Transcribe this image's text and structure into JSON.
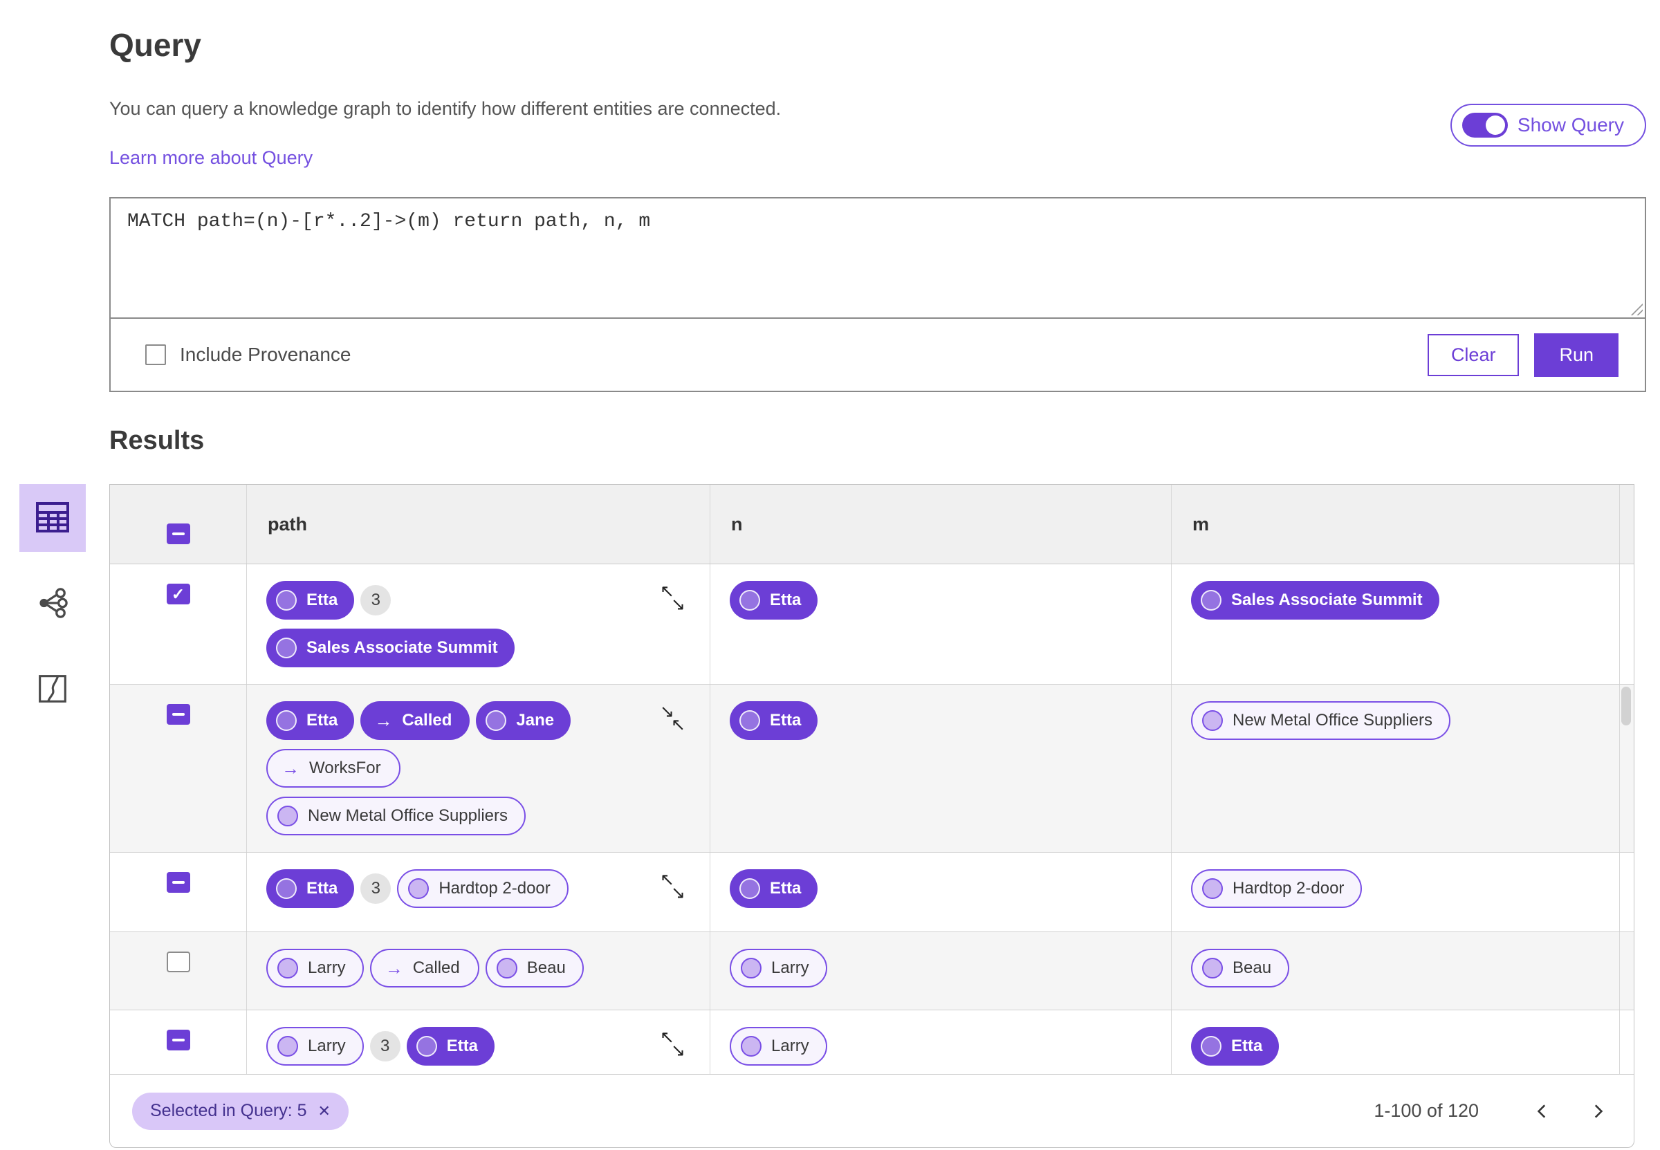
{
  "header": {
    "title": "Query",
    "description": "You can query a knowledge graph to identify how different entities are connected.",
    "learn_more": "Learn more about Query",
    "show_query_label": "Show Query",
    "show_query_on": true
  },
  "query_panel": {
    "query_text": "MATCH path=(n)-[r*..2]->(m) return path, n, m",
    "include_provenance_label": "Include Provenance",
    "include_provenance_checked": false,
    "clear_label": "Clear",
    "run_label": "Run"
  },
  "sidebar": {
    "views": [
      {
        "name": "table",
        "selected": true
      },
      {
        "name": "graph",
        "selected": false
      },
      {
        "name": "map",
        "selected": false
      }
    ]
  },
  "results": {
    "title": "Results",
    "columns": [
      "path",
      "n",
      "m"
    ],
    "rows": [
      {
        "checkbox": "checked",
        "path_lines": [
          [
            {
              "type": "node",
              "variant": "filled",
              "label": "Etta"
            },
            {
              "type": "count",
              "label": "3"
            }
          ],
          [
            {
              "type": "node",
              "variant": "filled",
              "label": "Sales Associate Summit"
            }
          ]
        ],
        "resize_icon": "expand",
        "n": [
          {
            "type": "node",
            "variant": "filled",
            "label": "Etta"
          }
        ],
        "m": [
          {
            "type": "node",
            "variant": "filled",
            "label": "Sales Associate Summit"
          }
        ]
      },
      {
        "checkbox": "indeterminate",
        "path_lines": [
          [
            {
              "type": "node",
              "variant": "filled",
              "label": "Etta"
            },
            {
              "type": "edge",
              "variant": "filled",
              "label": "Called"
            },
            {
              "type": "node",
              "variant": "filled",
              "label": "Jane"
            }
          ],
          [
            {
              "type": "edge",
              "variant": "outlined",
              "label": "WorksFor"
            }
          ],
          [
            {
              "type": "node",
              "variant": "outlined",
              "label": "New Metal Office Suppliers"
            }
          ]
        ],
        "resize_icon": "collapse",
        "n": [
          {
            "type": "node",
            "variant": "filled",
            "label": "Etta"
          }
        ],
        "m": [
          {
            "type": "node",
            "variant": "outlined",
            "label": "New Metal Office Suppliers"
          }
        ]
      },
      {
        "checkbox": "indeterminate",
        "path_lines": [
          [
            {
              "type": "node",
              "variant": "filled",
              "label": "Etta"
            },
            {
              "type": "count",
              "label": "3"
            },
            {
              "type": "node",
              "variant": "outlined",
              "label": "Hardtop 2-door"
            }
          ]
        ],
        "resize_icon": "expand",
        "n": [
          {
            "type": "node",
            "variant": "filled",
            "label": "Etta"
          }
        ],
        "m": [
          {
            "type": "node",
            "variant": "outlined",
            "label": "Hardtop 2-door"
          }
        ]
      },
      {
        "checkbox": "unchecked",
        "path_lines": [
          [
            {
              "type": "node",
              "variant": "outlined",
              "label": "Larry"
            },
            {
              "type": "edge",
              "variant": "outlined",
              "label": "Called"
            },
            {
              "type": "node",
              "variant": "outlined",
              "label": "Beau"
            }
          ]
        ],
        "resize_icon": null,
        "n": [
          {
            "type": "node",
            "variant": "outlined",
            "label": "Larry"
          }
        ],
        "m": [
          {
            "type": "node",
            "variant": "outlined",
            "label": "Beau"
          }
        ]
      },
      {
        "checkbox": "indeterminate",
        "path_lines": [
          [
            {
              "type": "node",
              "variant": "outlined",
              "label": "Larry"
            },
            {
              "type": "count",
              "label": "3"
            },
            {
              "type": "node",
              "variant": "filled",
              "label": "Etta"
            }
          ]
        ],
        "resize_icon": "expand",
        "n": [
          {
            "type": "node",
            "variant": "outlined",
            "label": "Larry"
          }
        ],
        "m": [
          {
            "type": "node",
            "variant": "filled",
            "label": "Etta"
          }
        ]
      },
      {
        "checkbox": "none",
        "partial": true,
        "path_lines": [
          [
            {
              "type": "node",
              "variant": "outlined",
              "label": "",
              "size": "s"
            },
            {
              "type": "count",
              "label": ""
            },
            {
              "type": "node",
              "variant": "outlined",
              "label": "",
              "size": "m"
            }
          ]
        ],
        "resize_icon": null,
        "n": [
          {
            "type": "node",
            "variant": "outlined",
            "label": "",
            "size": "s"
          }
        ],
        "m": [
          {
            "type": "node",
            "variant": "outlined",
            "label": "",
            "size": "m"
          }
        ]
      }
    ],
    "footer": {
      "selected_chip": "Selected in Query: 5",
      "pagination": "1-100 of 120"
    }
  },
  "colors": {
    "primary_purple": "#6c3ed6",
    "link_purple": "#7450e0",
    "pill_outline_border": "#7a4fe6",
    "pill_outline_bg": "#f7f4fd",
    "sidebar_selected_bg": "#d9c9f7",
    "chip_bg": "#d9c7f8",
    "chip_text": "#44318f"
  }
}
